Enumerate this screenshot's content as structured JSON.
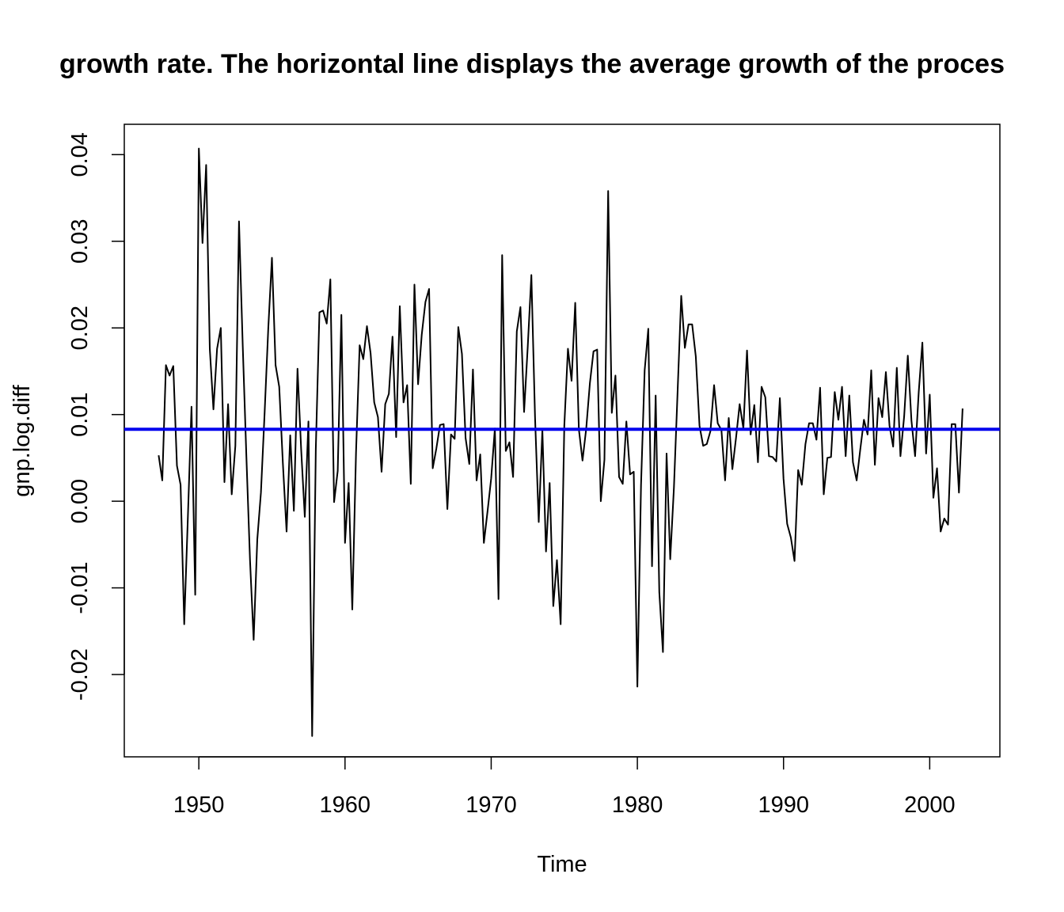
{
  "chart_data": {
    "type": "line",
    "title": "growth rate. The horizontal line displays the average growth of the proces",
    "xlabel": "Time",
    "ylabel": "gnp.log.diff",
    "xlim": [
      1944.9,
      2004.8
    ],
    "ylim": [
      -0.0295,
      0.0435
    ],
    "xticks": [
      1950,
      1960,
      1970,
      1980,
      1990,
      2000
    ],
    "xtick_labels": [
      "1950",
      "1960",
      "1970",
      "1980",
      "1990",
      "2000"
    ],
    "yticks": [
      -0.02,
      -0.01,
      0.0,
      0.01,
      0.02,
      0.03,
      0.04
    ],
    "ytick_labels": [
      "-0.02",
      "-0.01",
      "0.00",
      "0.01",
      "0.02",
      "0.03",
      "0.04"
    ],
    "grid": false,
    "series": [
      {
        "color": "#000000",
        "x_start": 1947.25,
        "x_step": 0.25,
        "values": [
          0.0053,
          0.0024,
          0.0157,
          0.0145,
          0.0156,
          0.0041,
          0.0019,
          -0.0142,
          -0.0019,
          0.0109,
          -0.0108,
          0.0407,
          0.0298,
          0.0388,
          0.0176,
          0.0106,
          0.0176,
          0.02,
          0.0022,
          0.0112,
          0.0008,
          0.0064,
          0.0323,
          0.018,
          0.0052,
          -0.0068,
          -0.016,
          -0.0044,
          0.001,
          0.0103,
          0.02,
          0.0281,
          0.0157,
          0.0132,
          0.0044,
          -0.0035,
          0.0076,
          -0.0011,
          0.0153,
          0.006,
          -0.0018,
          0.0092,
          -0.0271,
          0.006,
          0.0218,
          0.022,
          0.0205,
          0.0256,
          -0.0001,
          0.0035,
          0.0215,
          -0.0048,
          0.0021,
          -0.0125,
          0.0056,
          0.018,
          0.0164,
          0.0202,
          0.0171,
          0.0114,
          0.0097,
          0.0034,
          0.0112,
          0.0124,
          0.019,
          0.0074,
          0.0225,
          0.0114,
          0.0134,
          0.002,
          0.025,
          0.0135,
          0.0192,
          0.023,
          0.0245,
          0.0038,
          0.0061,
          0.0088,
          0.0089,
          -0.0009,
          0.0077,
          0.0072,
          0.0201,
          0.017,
          0.0073,
          0.0043,
          0.0152,
          0.0024,
          0.0054,
          -0.0048,
          -0.0012,
          0.0026,
          0.0084,
          -0.0113,
          0.0284,
          0.0058,
          0.0068,
          0.0028,
          0.0196,
          0.0224,
          0.0103,
          0.0178,
          0.0261,
          0.0098,
          -0.0024,
          0.0082,
          -0.0058,
          0.0021,
          -0.0121,
          -0.0068,
          -0.0142,
          0.0087,
          0.0176,
          0.0139,
          0.0229,
          0.0083,
          0.0047,
          0.0084,
          0.0136,
          0.0173,
          0.0175,
          -0.0,
          0.0048,
          0.0358,
          0.0102,
          0.0145,
          0.0028,
          0.002,
          0.0092,
          0.0031,
          0.0034,
          -0.0214,
          0.0018,
          0.0151,
          0.0199,
          -0.0075,
          0.0122,
          -0.0105,
          -0.0174,
          0.0055,
          -0.0067,
          0.0016,
          0.0126,
          0.0237,
          0.0177,
          0.0204,
          0.0204,
          0.0167,
          0.0087,
          0.0064,
          0.0066,
          0.0081,
          0.0134,
          0.009,
          0.0082,
          0.0024,
          0.0096,
          0.0037,
          0.0073,
          0.0112,
          0.0084,
          0.0174,
          0.0077,
          0.0111,
          0.0045,
          0.0132,
          0.012,
          0.0052,
          0.0051,
          0.0046,
          0.0119,
          0.0026,
          -0.0026,
          -0.0042,
          -0.0069,
          0.0036,
          0.0019,
          0.0066,
          0.009,
          0.009,
          0.0071,
          0.0131,
          0.0008,
          0.005,
          0.0051,
          0.0126,
          0.0094,
          0.0132,
          0.0052,
          0.0122,
          0.0045,
          0.0024,
          0.006,
          0.0094,
          0.0077,
          0.0151,
          0.0042,
          0.0119,
          0.0097,
          0.0149,
          0.0087,
          0.0063,
          0.0154,
          0.0052,
          0.0098,
          0.0168,
          0.0093,
          0.0052,
          0.0126,
          0.0183,
          0.0055,
          0.0123,
          0.0004,
          0.0038,
          -0.0035,
          -0.002,
          -0.0027,
          0.0089,
          0.0089,
          0.001,
          0.0107
        ]
      }
    ],
    "hlines": [
      {
        "y": 0.0083,
        "color": "#0000ee"
      }
    ]
  }
}
